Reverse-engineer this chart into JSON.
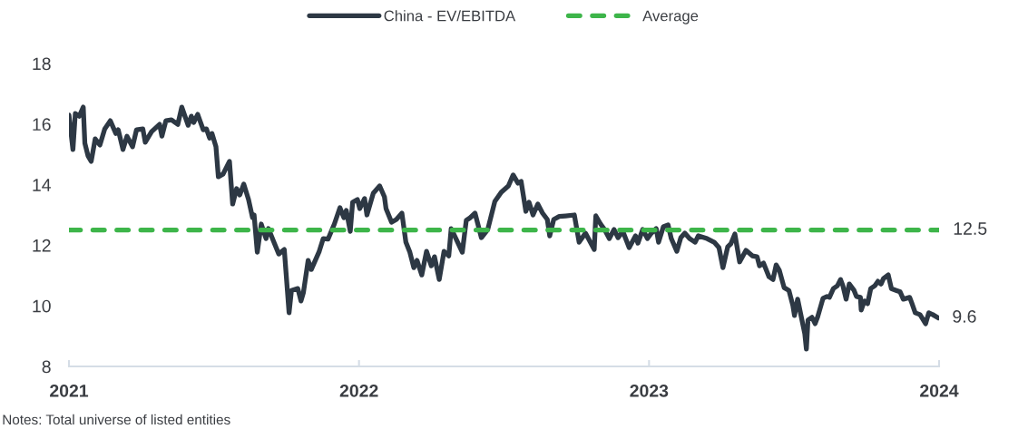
{
  "chart_data": {
    "type": "line",
    "legend": "top",
    "xlim": [
      "2021",
      "2024"
    ],
    "xticks": [
      "2021",
      "2022",
      "2023",
      "2024"
    ],
    "ylim": [
      8,
      18
    ],
    "yticks": [
      8,
      10,
      12,
      14,
      16,
      18
    ],
    "grid": false,
    "x": [
      "2021-01-01",
      "2021-01-06",
      "2021-01-09",
      "2021-01-14",
      "2021-01-19",
      "2021-01-21",
      "2021-01-25",
      "2021-01-29",
      "2021-02-03",
      "2021-02-09",
      "2021-02-15",
      "2021-02-22",
      "2021-03-01",
      "2021-03-04",
      "2021-03-10",
      "2021-03-15",
      "2021-03-22",
      "2021-03-27",
      "2021-04-04",
      "2021-04-07",
      "2021-04-15",
      "2021-04-25",
      "2021-04-28",
      "2021-05-03",
      "2021-05-10",
      "2021-05-18",
      "2021-05-23",
      "2021-05-31",
      "2021-06-04",
      "2021-06-07",
      "2021-06-12",
      "2021-06-19",
      "2021-06-23",
      "2021-06-27",
      "2021-06-30",
      "2021-07-05",
      "2021-07-08",
      "2021-07-14",
      "2021-07-22",
      "2021-07-26",
      "2021-07-31",
      "2021-08-04",
      "2021-08-09",
      "2021-08-15",
      "2021-08-20",
      "2021-08-22",
      "2021-08-26",
      "2021-08-31",
      "2021-09-06",
      "2021-09-09",
      "2021-09-15",
      "2021-09-22",
      "2021-09-29",
      "2021-10-05",
      "2021-10-08",
      "2021-10-16",
      "2021-10-20",
      "2021-10-23",
      "2021-10-29",
      "2021-11-02",
      "2021-11-12",
      "2021-11-17",
      "2021-11-23",
      "2021-12-01",
      "2021-12-08",
      "2021-12-13",
      "2021-12-16",
      "2021-12-21",
      "2021-12-24",
      "2021-12-30",
      "2022-01-02",
      "2022-01-08",
      "2022-01-11",
      "2022-01-19",
      "2022-01-27",
      "2022-02-02",
      "2022-02-04",
      "2022-02-11",
      "2022-02-17",
      "2022-02-24",
      "2022-03-01",
      "2022-03-06",
      "2022-03-11",
      "2022-03-15",
      "2022-03-21",
      "2022-03-27",
      "2022-04-02",
      "2022-04-06",
      "2022-04-12",
      "2022-04-18",
      "2022-04-24",
      "2022-04-27",
      "2022-05-03",
      "2022-05-11",
      "2022-05-16",
      "2022-05-21",
      "2022-05-27",
      "2022-06-04",
      "2022-06-12",
      "2022-06-21",
      "2022-06-29",
      "2022-07-08",
      "2022-07-14",
      "2022-07-20",
      "2022-07-24",
      "2022-07-30",
      "2022-08-03",
      "2022-08-08",
      "2022-08-14",
      "2022-08-20",
      "2022-08-26",
      "2022-08-29",
      "2022-09-03",
      "2022-09-10",
      "2022-09-18",
      "2022-09-29",
      "2022-10-05",
      "2022-10-13",
      "2022-10-24",
      "2022-10-26",
      "2022-11-01",
      "2022-11-06",
      "2022-11-12",
      "2022-11-18",
      "2022-11-23",
      "2022-11-29",
      "2022-12-07",
      "2022-12-15",
      "2022-12-18",
      "2022-12-24",
      "2022-12-30",
      "2023-01-04",
      "2023-01-10",
      "2023-01-13",
      "2023-01-19",
      "2023-01-25",
      "2023-01-29",
      "2023-02-05",
      "2023-02-10",
      "2023-02-15",
      "2023-02-21",
      "2023-02-28",
      "2023-03-04",
      "2023-03-15",
      "2023-03-24",
      "2023-03-30",
      "2023-04-04",
      "2023-04-10",
      "2023-04-14",
      "2023-04-19",
      "2023-04-25",
      "2023-05-03",
      "2023-05-11",
      "2023-05-17",
      "2023-05-20",
      "2023-05-25",
      "2023-06-01",
      "2023-06-06",
      "2023-06-10",
      "2023-06-14",
      "2023-06-20",
      "2023-06-26",
      "2023-07-01",
      "2023-07-03",
      "2023-07-07",
      "2023-07-11",
      "2023-07-16",
      "2023-07-18",
      "2023-07-20",
      "2023-07-25",
      "2023-07-29",
      "2023-08-01",
      "2023-08-05",
      "2023-08-08",
      "2023-08-13",
      "2023-08-16",
      "2023-08-21",
      "2023-08-26",
      "2023-08-30",
      "2023-09-02",
      "2023-09-06",
      "2023-09-10",
      "2023-09-16",
      "2023-09-19",
      "2023-09-24",
      "2023-09-25",
      "2023-09-29",
      "2023-10-03",
      "2023-10-07",
      "2023-10-12",
      "2023-10-16",
      "2023-10-20",
      "2023-10-23",
      "2023-10-29",
      "2023-11-02",
      "2023-11-08",
      "2023-11-13",
      "2023-11-17",
      "2023-11-25",
      "2023-11-28",
      "2023-12-02",
      "2023-12-08",
      "2023-12-15",
      "2023-12-19",
      "2023-12-24",
      "2023-12-31"
    ],
    "series": [
      {
        "name": "China - EV/EBITDA",
        "color": "#2d3844",
        "line_style": "solid",
        "values": [
          16.3,
          15.16,
          16.35,
          16.26,
          16.56,
          15.37,
          14.95,
          14.77,
          15.51,
          15.31,
          15.84,
          16.11,
          15.69,
          15.81,
          15.16,
          15.6,
          15.25,
          15.81,
          15.84,
          15.4,
          15.75,
          15.99,
          15.6,
          16.11,
          16.14,
          15.99,
          16.56,
          15.96,
          16.26,
          16.05,
          16.32,
          15.81,
          15.84,
          15.54,
          15.69,
          15.25,
          14.26,
          14.35,
          14.77,
          13.36,
          13.87,
          13.66,
          14.02,
          13.51,
          12.91,
          13.0,
          11.77,
          12.7,
          12.22,
          12.55,
          12.16,
          11.71,
          11.86,
          9.77,
          10.51,
          10.57,
          10.16,
          10.43,
          11.5,
          11.2,
          11.8,
          12.22,
          12.2,
          12.7,
          13.24,
          12.91,
          13.15,
          12.46,
          13.42,
          13.51,
          13.21,
          13.54,
          13.0,
          13.72,
          13.96,
          13.6,
          13.21,
          12.76,
          12.85,
          13.06,
          12.1,
          11.77,
          11.26,
          11.5,
          11.02,
          11.8,
          11.32,
          11.62,
          10.87,
          11.8,
          11.65,
          12.55,
          12.22,
          11.77,
          12.82,
          12.91,
          13.06,
          12.25,
          12.52,
          13.45,
          13.75,
          13.96,
          14.32,
          14.05,
          14.11,
          13.12,
          13.42,
          13.0,
          13.36,
          13.06,
          12.85,
          12.31,
          12.85,
          12.95,
          12.97,
          13.0,
          12.1,
          12.4,
          11.86,
          12.97,
          12.7,
          12.52,
          12.22,
          12.52,
          12.25,
          12.46,
          11.92,
          12.31,
          12.07,
          12.52,
          12.22,
          12.4,
          12.55,
          12.1,
          12.61,
          12.67,
          12.22,
          11.8,
          12.25,
          12.4,
          12.22,
          12.1,
          12.31,
          12.22,
          12.1,
          11.92,
          11.26,
          11.95,
          12.05,
          12.37,
          11.45,
          11.83,
          11.65,
          11.62,
          11.32,
          11.41,
          10.96,
          10.87,
          11.35,
          11.17,
          10.6,
          10.51,
          10.01,
          9.68,
          10.22,
          9.71,
          9.08,
          8.57,
          9.53,
          9.62,
          9.41,
          9.62,
          9.98,
          10.25,
          10.31,
          10.28,
          10.57,
          10.66,
          10.87,
          10.66,
          10.22,
          10.72,
          10.51,
          10.31,
          10.28,
          9.86,
          10.16,
          10.07,
          10.57,
          10.66,
          10.81,
          10.72,
          10.9,
          11.02,
          10.57,
          10.51,
          10.46,
          10.22,
          10.28,
          10.07,
          9.77,
          9.71,
          9.41,
          9.77,
          9.71,
          9.6
        ]
      },
      {
        "name": "Average",
        "color": "#3db54a",
        "line_style": "dashed",
        "x": [
          "2021-01-01",
          "2024-01-01"
        ],
        "values": [
          12.5,
          12.5
        ]
      }
    ],
    "annotations": [
      {
        "text": "12.5",
        "x": "2024-01-01",
        "y": 12.5
      },
      {
        "text": "9.6",
        "x": "2023-12-31",
        "y": 9.6
      },
      "Notes: Total universe of listed entities"
    ]
  }
}
